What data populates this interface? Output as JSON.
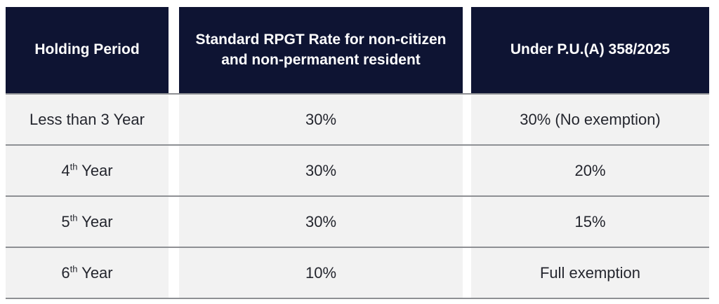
{
  "table": {
    "headers": [
      {
        "label": "Holding Period"
      },
      {
        "label": "Standard RPGT Rate for non-citizen and non-permanent resident"
      },
      {
        "label": "Under P.U.(A) 358/2025"
      }
    ],
    "rows": [
      {
        "period": {
          "pre": "Less than 3 Year",
          "sup": "",
          "post": ""
        },
        "standard_rate": "30%",
        "pua_rate": "30% (No exemption)"
      },
      {
        "period": {
          "pre": "4",
          "sup": "th",
          "post": " Year"
        },
        "standard_rate": "30%",
        "pua_rate": "20%"
      },
      {
        "period": {
          "pre": "5",
          "sup": "th",
          "post": " Year"
        },
        "standard_rate": "30%",
        "pua_rate": "15%"
      },
      {
        "period": {
          "pre": "6",
          "sup": "th",
          "post": " Year"
        },
        "standard_rate": "10%",
        "pua_rate": "Full exemption"
      }
    ]
  },
  "colors": {
    "header_bg": "#0e1433",
    "header_text": "#ffffff",
    "row_bg": "#f2f2f2",
    "row_text": "#24262e",
    "separator_line": "#8e9094",
    "page_bg": "#ffffff"
  },
  "chart_data": {
    "type": "table",
    "columns": [
      "Holding Period",
      "Standard RPGT Rate for non-citizen and non-permanent resident",
      "Under P.U.(A) 358/2025"
    ],
    "rows": [
      [
        "Less than 3 Year",
        "30%",
        "30% (No exemption)"
      ],
      [
        "4th Year",
        "30%",
        "20%"
      ],
      [
        "5th Year",
        "30%",
        "15%"
      ],
      [
        "6th Year",
        "10%",
        "Full exemption"
      ]
    ]
  }
}
